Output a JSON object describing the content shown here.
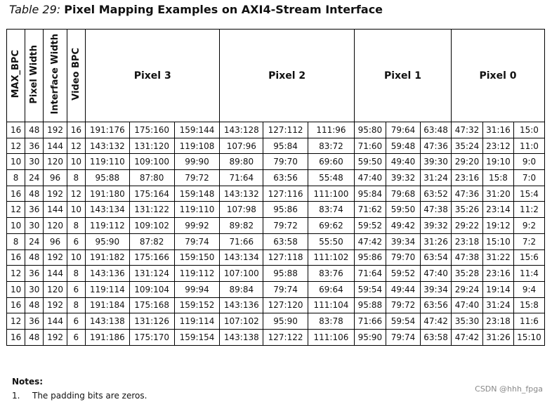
{
  "title": {
    "label": "Table 29:",
    "text": "Pixel Mapping Examples on AXI4-Stream Interface"
  },
  "headers": {
    "max_bpc": "MAX_BPC",
    "pixel_width": "Pixel Width",
    "interface_width": "Interface Width",
    "video_bpc": "Video BPC",
    "pixel3": "Pixel 3",
    "pixel2": "Pixel 2",
    "pixel1": "Pixel 1",
    "pixel0": "Pixel 0"
  },
  "rows": [
    [
      "16",
      "48",
      "192",
      "16",
      "191:176",
      "175:160",
      "159:144",
      "143:128",
      "127:112",
      "111:96",
      "95:80",
      "79:64",
      "63:48",
      "47:32",
      "31:16",
      "15:0"
    ],
    [
      "12",
      "36",
      "144",
      "12",
      "143:132",
      "131:120",
      "119:108",
      "107:96",
      "95:84",
      "83:72",
      "71:60",
      "59:48",
      "47:36",
      "35:24",
      "23:12",
      "11:0"
    ],
    [
      "10",
      "30",
      "120",
      "10",
      "119:110",
      "109:100",
      "99:90",
      "89:80",
      "79:70",
      "69:60",
      "59:50",
      "49:40",
      "39:30",
      "29:20",
      "19:10",
      "9:0"
    ],
    [
      "8",
      "24",
      "96",
      "8",
      "95:88",
      "87:80",
      "79:72",
      "71:64",
      "63:56",
      "55:48",
      "47:40",
      "39:32",
      "31:24",
      "23:16",
      "15:8",
      "7:0"
    ],
    [
      "16",
      "48",
      "192",
      "12",
      "191:180",
      "175:164",
      "159:148",
      "143:132",
      "127:116",
      "111:100",
      "95:84",
      "79:68",
      "63:52",
      "47:36",
      "31:20",
      "15:4"
    ],
    [
      "12",
      "36",
      "144",
      "10",
      "143:134",
      "131:122",
      "119:110",
      "107:98",
      "95:86",
      "83:74",
      "71:62",
      "59:50",
      "47:38",
      "35:26",
      "23:14",
      "11:2"
    ],
    [
      "10",
      "30",
      "120",
      "8",
      "119:112",
      "109:102",
      "99:92",
      "89:82",
      "79:72",
      "69:62",
      "59:52",
      "49:42",
      "39:32",
      "29:22",
      "19:12",
      "9:2"
    ],
    [
      "8",
      "24",
      "96",
      "6",
      "95:90",
      "87:82",
      "79:74",
      "71:66",
      "63:58",
      "55:50",
      "47:42",
      "39:34",
      "31:26",
      "23:18",
      "15:10",
      "7:2"
    ],
    [
      "16",
      "48",
      "192",
      "10",
      "191:182",
      "175:166",
      "159:150",
      "143:134",
      "127:118",
      "111:102",
      "95:86",
      "79:70",
      "63:54",
      "47:38",
      "31:22",
      "15:6"
    ],
    [
      "12",
      "36",
      "144",
      "8",
      "143:136",
      "131:124",
      "119:112",
      "107:100",
      "95:88",
      "83:76",
      "71:64",
      "59:52",
      "47:40",
      "35:28",
      "23:16",
      "11:4"
    ],
    [
      "10",
      "30",
      "120",
      "6",
      "119:114",
      "109:104",
      "99:94",
      "89:84",
      "79:74",
      "69:64",
      "59:54",
      "49:44",
      "39:34",
      "29:24",
      "19:14",
      "9:4"
    ],
    [
      "16",
      "48",
      "192",
      "8",
      "191:184",
      "175:168",
      "159:152",
      "143:136",
      "127:120",
      "111:104",
      "95:88",
      "79:72",
      "63:56",
      "47:40",
      "31:24",
      "15:8"
    ],
    [
      "12",
      "36",
      "144",
      "6",
      "143:138",
      "131:126",
      "119:114",
      "107:102",
      "95:90",
      "83:78",
      "71:66",
      "59:54",
      "47:42",
      "35:30",
      "23:18",
      "11:6"
    ],
    [
      "16",
      "48",
      "192",
      "6",
      "191:186",
      "175:170",
      "159:154",
      "143:138",
      "127:122",
      "111:106",
      "95:90",
      "79:74",
      "63:58",
      "47:42",
      "31:26",
      "15:10"
    ]
  ],
  "notes": {
    "heading": "Notes:",
    "number": "1.",
    "text": "The padding bits are zeros."
  },
  "watermark": "CSDN @hhh_fpga"
}
